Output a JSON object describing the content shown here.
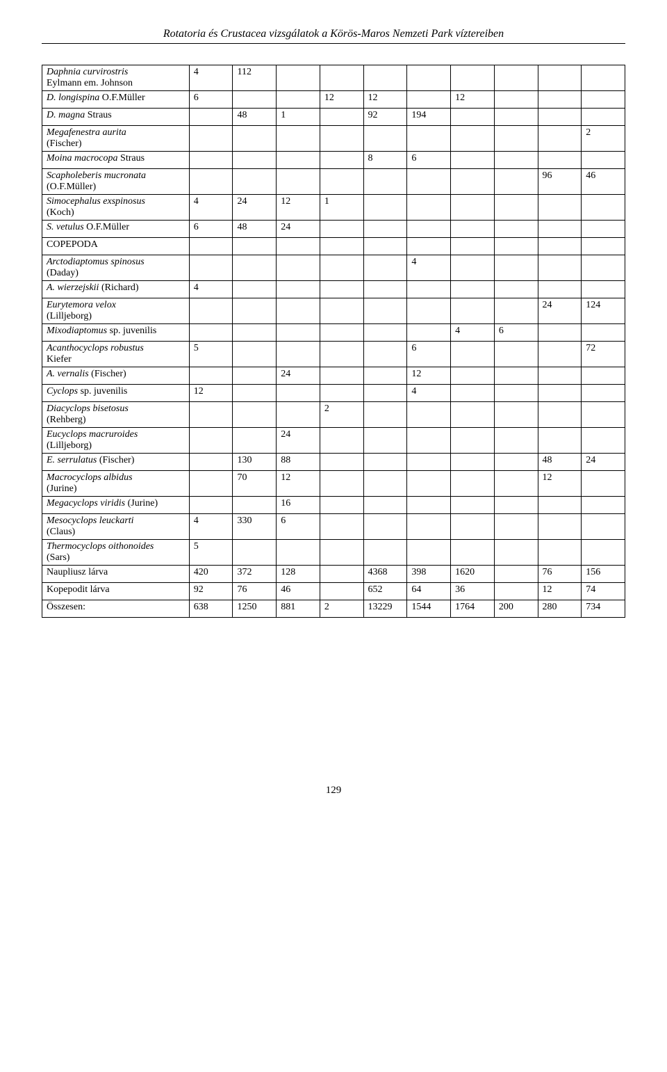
{
  "header_title": "Rotatoria és Crustacea vizsgálatok a Körös-Maros Nemzeti Park víztereiben",
  "page_number": "129",
  "rows": [
    {
      "label_html": "<span class='italic'>Daphnia curvirostris</span><br>Eylmann em. Johnson",
      "c": [
        "4",
        "112",
        "",
        "",
        "",
        "",
        "",
        "",
        "",
        ""
      ]
    },
    {
      "label_html": "<span class='italic'>D. longispina</span> O.F.Müller",
      "c": [
        "6",
        "",
        "",
        "12",
        "12",
        "",
        "12",
        "",
        "",
        ""
      ]
    },
    {
      "label_html": "<span class='italic'>D. magna</span> Straus",
      "c": [
        "",
        "48",
        "1",
        "",
        "92",
        "194",
        "",
        "",
        "",
        ""
      ]
    },
    {
      "label_html": "<span class='italic'>Megafenestra aurita</span><br>(Fischer)",
      "c": [
        "",
        "",
        "",
        "",
        "",
        "",
        "",
        "",
        "",
        "2"
      ]
    },
    {
      "label_html": "<span class='italic'>Moina macrocopa</span> Straus",
      "c": [
        "",
        "",
        "",
        "",
        "8",
        "6",
        "",
        "",
        "",
        ""
      ]
    },
    {
      "label_html": "<span class='italic'>Scapholeberis mucronata</span><br>(O.F.Müller)",
      "c": [
        "",
        "",
        "",
        "",
        "",
        "",
        "",
        "",
        "96",
        "46"
      ]
    },
    {
      "label_html": "<span class='italic'>Simocephalus exspinosus</span><br>(Koch)",
      "c": [
        "4",
        "24",
        "12",
        "1",
        "",
        "",
        "",
        "",
        "",
        ""
      ]
    },
    {
      "label_html": "<span class='italic'>S. vetulus</span> O.F.Müller",
      "c": [
        "6",
        "48",
        "24",
        "",
        "",
        "",
        "",
        "",
        "",
        ""
      ]
    },
    {
      "label_html": "COPEPODA",
      "c": [
        "",
        "",
        "",
        "",
        "",
        "",
        "",
        "",
        "",
        ""
      ]
    },
    {
      "label_html": "<span class='italic'>Arctodiaptomus spinosus</span><br>(Daday)",
      "c": [
        "",
        "",
        "",
        "",
        "",
        "4",
        "",
        "",
        "",
        ""
      ]
    },
    {
      "label_html": "<span class='italic'>A. wierzejskii</span> (Richard)",
      "c": [
        "4",
        "",
        "",
        "",
        "",
        "",
        "",
        "",
        "",
        ""
      ]
    },
    {
      "label_html": "<span class='italic'>Eurytemora velox</span><br>(Lilljeborg)",
      "c": [
        "",
        "",
        "",
        "",
        "",
        "",
        "",
        "",
        "24",
        "124"
      ]
    },
    {
      "label_html": "<span class='italic'>Mixodiaptomus</span> sp. juvenilis",
      "c": [
        "",
        "",
        "",
        "",
        "",
        "",
        "4",
        "6",
        "",
        ""
      ]
    },
    {
      "label_html": "<span class='italic'>Acanthocyclops robustus</span><br>Kiefer",
      "c": [
        "5",
        "",
        "",
        "",
        "",
        "6",
        "",
        "",
        "",
        "72"
      ]
    },
    {
      "label_html": "<span class='italic'>A. vernalis</span> (Fischer)",
      "c": [
        "",
        "",
        "24",
        "",
        "",
        "12",
        "",
        "",
        "",
        ""
      ]
    },
    {
      "label_html": "<span class='italic'>Cyclops</span> sp. juvenilis",
      "c": [
        "12",
        "",
        "",
        "",
        "",
        "4",
        "",
        "",
        "",
        ""
      ]
    },
    {
      "label_html": "<span class='italic'>Diacyclops bisetosus</span><br>(Rehberg)",
      "c": [
        "",
        "",
        "",
        "2",
        "",
        "",
        "",
        "",
        "",
        ""
      ]
    },
    {
      "label_html": "<span class='italic'>Eucyclops macruroides</span><br>(Lilljeborg)",
      "c": [
        "",
        "",
        "24",
        "",
        "",
        "",
        "",
        "",
        "",
        ""
      ]
    },
    {
      "label_html": "<span class='italic'>E. serrulatus</span> (Fischer)",
      "c": [
        "",
        "130",
        "88",
        "",
        "",
        "",
        "",
        "",
        "48",
        "24"
      ]
    },
    {
      "label_html": "<span class='italic'>Macrocyclops albidus</span><br>(Jurine)",
      "c": [
        "",
        "70",
        "12",
        "",
        "",
        "",
        "",
        "",
        "12",
        ""
      ]
    },
    {
      "label_html": "<span class='italic'>Megacyclops viridis</span> (Jurine)",
      "c": [
        "",
        "",
        "16",
        "",
        "",
        "",
        "",
        "",
        "",
        ""
      ]
    },
    {
      "label_html": "<span class='italic'>Mesocyclops leuckarti</span><br>(Claus)",
      "c": [
        "4",
        "330",
        "6",
        "",
        "",
        "",
        "",
        "",
        "",
        ""
      ]
    },
    {
      "label_html": "<span class='italic'>Thermocyclops oithonoides</span><br>(Sars)",
      "c": [
        "5",
        "",
        "",
        "",
        "",
        "",
        "",
        "",
        "",
        ""
      ]
    },
    {
      "label_html": "Naupliusz lárva",
      "c": [
        "420",
        "372",
        "128",
        "",
        "4368",
        "398",
        "1620",
        "",
        "76",
        "156"
      ]
    },
    {
      "label_html": "Kopepodit lárva",
      "c": [
        "92",
        "76",
        "46",
        "",
        "652",
        "64",
        "36",
        "",
        "12",
        "74"
      ]
    },
    {
      "label_html": "Összesen:",
      "c": [
        "638",
        "1250",
        "881",
        "2",
        "13229",
        "1544",
        "1764",
        "200",
        "280",
        "734"
      ]
    }
  ]
}
